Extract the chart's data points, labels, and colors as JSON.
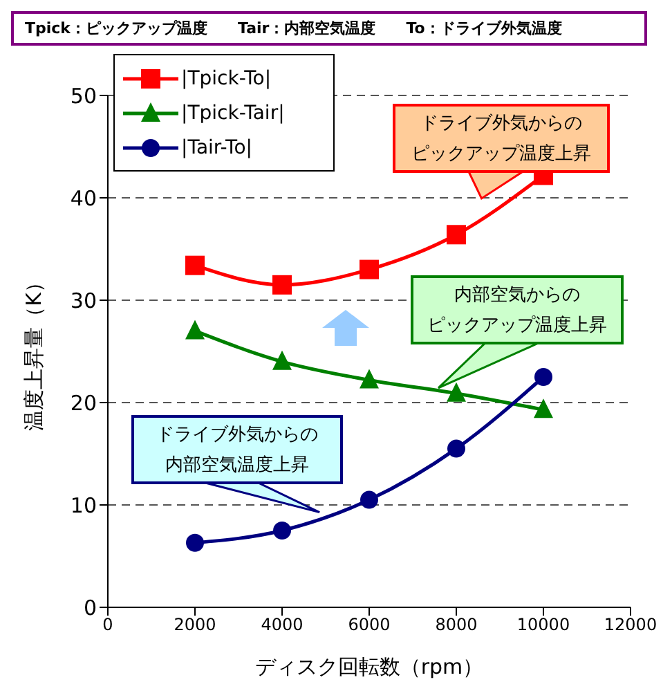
{
  "chart_data": {
    "type": "line",
    "title": "Tpick：ピックアップ温度　　Tair：内部空気温度　　To：ドライブ外気温度",
    "xlabel": "ディスク回転数（rpm）",
    "ylabel": "温度上昇量（K）",
    "x": [
      2000,
      4000,
      6000,
      8000,
      10000
    ],
    "series": [
      {
        "name": "|Tpick-To|",
        "color": "#ff0000",
        "marker": "square",
        "values": [
          33.4,
          31.5,
          33.0,
          36.4,
          42.2
        ]
      },
      {
        "name": "|Tpick-Tair|",
        "color": "#008000",
        "marker": "triangle",
        "values": [
          27.0,
          24.0,
          22.2,
          20.9,
          19.3
        ]
      },
      {
        "name": "|Tair-To|",
        "color": "#000080",
        "marker": "circle",
        "values": [
          6.3,
          7.5,
          10.5,
          15.5,
          22.5
        ]
      }
    ],
    "xlim": [
      0,
      12000
    ],
    "xticks": [
      0,
      2000,
      4000,
      6000,
      8000,
      10000,
      12000
    ],
    "ylim": [
      0,
      50
    ],
    "yticks": [
      0,
      10,
      20,
      30,
      40,
      50
    ],
    "grid": "y",
    "legend": "top left",
    "annotations": [
      "ドライブ外気からの",
      "ピックアップ温度上昇",
      "内部空気からの",
      "ピックアップ温度上昇",
      "ドライブ外気からの",
      "内部空気温度上昇"
    ]
  }
}
